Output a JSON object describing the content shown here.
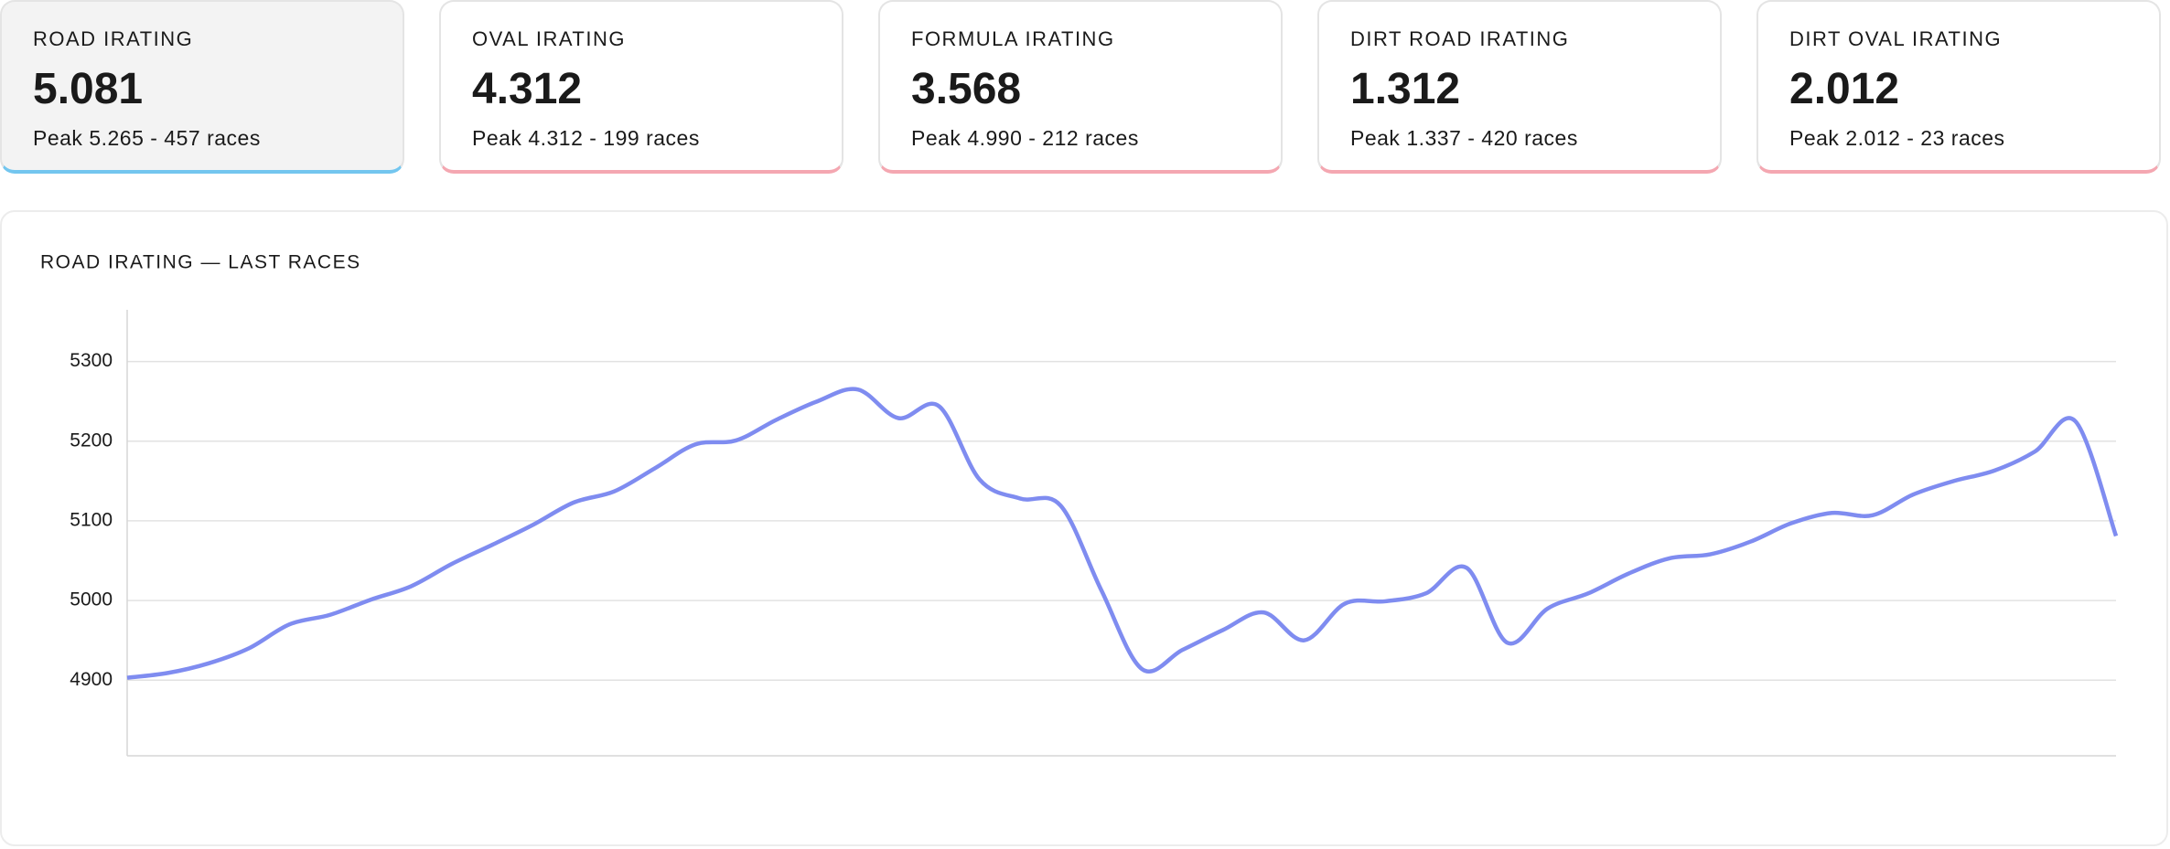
{
  "cards": [
    {
      "label": "ROAD IRATING",
      "value": "5.081",
      "detail": "Peak 5.265 - 457 races",
      "active": true
    },
    {
      "label": "OVAL IRATING",
      "value": "4.312",
      "detail": "Peak 4.312 - 199 races",
      "active": false
    },
    {
      "label": "FORMULA IRATING",
      "value": "3.568",
      "detail": "Peak 4.990 - 212 races",
      "active": false
    },
    {
      "label": "DIRT ROAD IRATING",
      "value": "1.312",
      "detail": "Peak 1.337 - 420 races",
      "active": false
    },
    {
      "label": "DIRT OVAL IRATING",
      "value": "2.012",
      "detail": "Peak 2.012 - 23 races",
      "active": false
    }
  ],
  "chart_data": {
    "type": "line",
    "title": "ROAD IRATING — LAST RACES",
    "series": [
      {
        "color": "#7f8cf0",
        "values": [
          4903,
          4909,
          4921,
          4940,
          4970,
          4982,
          5001,
          5018,
          5046,
          5070,
          5095,
          5123,
          5137,
          5166,
          5196,
          5201,
          5227,
          5250,
          5265,
          5229,
          5244,
          5152,
          5128,
          5119,
          5013,
          4914,
          4938,
          4963,
          4985,
          4950,
          4996,
          4999,
          5009,
          5041,
          4947,
          4990,
          5009,
          5034,
          5053,
          5058,
          5074,
          5097,
          5110,
          5107,
          5133,
          5150,
          5163,
          5187,
          5225,
          5081
        ]
      }
    ],
    "ylim": [
      4805,
      5365
    ],
    "yticks": [
      4900,
      5000,
      5100,
      5200,
      5300
    ],
    "grid": true
  }
}
